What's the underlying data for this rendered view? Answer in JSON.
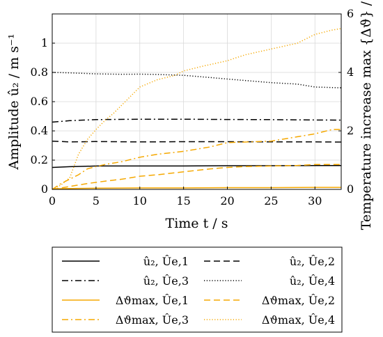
{
  "chart_data": {
    "type": "line",
    "xlabel": "Time t / s",
    "ylabel_left": "Amplitude û₂ / m s⁻¹",
    "ylabel_right": "Temperature increase max {Δϑ} / K",
    "xlim": [
      0,
      33
    ],
    "ylim_left": [
      0,
      1.2
    ],
    "ylim_right": [
      0,
      6
    ],
    "x_ticks": [
      "0",
      "5",
      "10",
      "15",
      "20",
      "25",
      "30"
    ],
    "y_ticks_left": [
      "0",
      "0.2",
      "0.4",
      "0.6",
      "0.8",
      "1"
    ],
    "y_ticks_right": [
      "0",
      "2",
      "4",
      "6"
    ],
    "grid": true,
    "legend_position": "below",
    "colors": {
      "amplitude": "#000000",
      "temperature": "#F5A800"
    },
    "series": [
      {
        "name": "û₂, Ûe,1",
        "axis": "left",
        "style": "solid",
        "x": [
          0,
          2,
          5,
          10,
          15,
          20,
          25,
          30,
          33
        ],
        "values": [
          0.15,
          0.155,
          0.16,
          0.16,
          0.16,
          0.162,
          0.162,
          0.163,
          0.163
        ]
      },
      {
        "name": "û₂, Ûe,2",
        "axis": "left",
        "style": "dashed",
        "x": [
          0,
          2,
          5,
          10,
          15,
          20,
          25,
          30,
          33
        ],
        "values": [
          0.33,
          0.325,
          0.327,
          0.325,
          0.326,
          0.326,
          0.325,
          0.325,
          0.324
        ]
      },
      {
        "name": "û₂, Ûe,3",
        "axis": "left",
        "style": "dashdot",
        "x": [
          0,
          2,
          5,
          10,
          15,
          20,
          25,
          30,
          33
        ],
        "values": [
          0.46,
          0.47,
          0.477,
          0.48,
          0.48,
          0.478,
          0.477,
          0.475,
          0.474
        ]
      },
      {
        "name": "û₂, Ûe,4",
        "axis": "left",
        "style": "dotted",
        "x": [
          0,
          2,
          5,
          8,
          10,
          12,
          15,
          18,
          20,
          23,
          25,
          28,
          30,
          33
        ],
        "values": [
          0.8,
          0.797,
          0.79,
          0.787,
          0.788,
          0.786,
          0.78,
          0.765,
          0.755,
          0.74,
          0.73,
          0.72,
          0.7,
          0.695
        ]
      },
      {
        "name": "Δϑmax, Ûe,1",
        "axis": "right",
        "style": "solid",
        "x": [
          0,
          2,
          5,
          10,
          15,
          20,
          25,
          30,
          33
        ],
        "values": [
          0.02,
          0.03,
          0.04,
          0.05,
          0.05,
          0.06,
          0.06,
          0.07,
          0.07
        ]
      },
      {
        "name": "Δϑmax, Ûe,2",
        "axis": "right",
        "style": "dashed",
        "x": [
          0,
          2,
          4,
          6,
          8,
          10,
          12,
          15,
          18,
          20,
          22,
          25,
          28,
          30,
          33
        ],
        "values": [
          0,
          0.1,
          0.2,
          0.28,
          0.35,
          0.45,
          0.5,
          0.6,
          0.7,
          0.75,
          0.78,
          0.8,
          0.82,
          0.85,
          0.85
        ]
      },
      {
        "name": "Δϑmax, Ûe,3",
        "axis": "right",
        "style": "dashdot",
        "x": [
          0,
          1,
          2,
          3,
          4,
          5,
          6,
          8,
          10,
          12,
          15,
          18,
          20,
          22,
          25,
          28,
          30,
          32,
          33
        ],
        "values": [
          0,
          0.2,
          0.35,
          0.5,
          0.7,
          0.78,
          0.85,
          0.95,
          1.1,
          1.2,
          1.3,
          1.45,
          1.6,
          1.62,
          1.65,
          1.8,
          1.9,
          2.05,
          2.05
        ]
      },
      {
        "name": "Δϑmax, Ûe,4",
        "axis": "right",
        "style": "dotted",
        "x": [
          0,
          1,
          2,
          3,
          4,
          5,
          6,
          7,
          8,
          9,
          10,
          12,
          14,
          15,
          17,
          20,
          22,
          25,
          28,
          30,
          32,
          33
        ],
        "values": [
          0,
          0.15,
          0.4,
          1.2,
          1.7,
          2.05,
          2.35,
          2.6,
          2.9,
          3.2,
          3.5,
          3.75,
          3.9,
          4.05,
          4.2,
          4.4,
          4.6,
          4.8,
          5.0,
          5.3,
          5.45,
          5.5
        ]
      }
    ]
  }
}
